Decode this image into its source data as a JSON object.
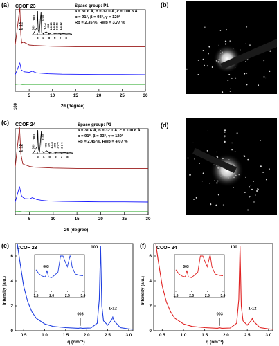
{
  "panels": {
    "a": {
      "label": "(a)",
      "sample": "CCOF 23",
      "space_group": "Space group: P1",
      "cell1": "a = 31.6 Å, b = 32.0 Å, c = 100.8 Å",
      "cell2": "α = 91°, β = 93°, γ = 120°",
      "fit": "Rp = 2.35 %, Rwp = 3.77 %",
      "xlabel": "2θ (degree)",
      "main_peak_labels": [
        "100",
        "1-12"
      ],
      "inset_peak_labels": [
        "100",
        "1-12",
        "003",
        "1-1-4",
        "006",
        "1-1-10",
        "1-1-13",
        "3-3-16",
        "1-1-12"
      ]
    },
    "b": {
      "label": "(b)"
    },
    "c": {
      "label": "(c)",
      "sample": "CCOF 24",
      "space_group": "Space group: P1",
      "cell1": "a = 31.6 Å, b = 32.1 Å, c = 100.8 Å",
      "cell2": "α = 91°, β = 93°, γ = 120°",
      "fit": "Rp = 2.45 %, Rwp = 4.07 %",
      "xlabel": "2θ (degree)",
      "main_peak_labels": [
        "100",
        "1-12"
      ],
      "inset_peak_labels": [
        "100",
        "1-12",
        "003",
        "006",
        "110",
        "1-1-8",
        "200",
        "2-2-4",
        "2-2-6"
      ]
    },
    "d": {
      "label": "(d)"
    },
    "e": {
      "label": "(e)",
      "sample": "CCOF 23",
      "xlabel": "q (nm⁻¹)",
      "ylabel": "Intensity (a.u.)",
      "peak_labels": [
        "100",
        "003",
        "1-12"
      ],
      "inset_label": "003"
    },
    "f": {
      "label": "(f)",
      "sample": "CCOF 24",
      "xlabel": "q (nm⁻¹)",
      "ylabel": "Intensity (a.u.)",
      "peak_labels": [
        "100",
        "003",
        "1-12"
      ],
      "inset_label": "003"
    }
  },
  "colors": {
    "exp": "#9b1b1b",
    "sim": "#1a1aff",
    "diff": "#1aa31a",
    "black": "#000000",
    "red": "#e02020",
    "blue": "#1e3ee0"
  },
  "chart_data": [
    {
      "id": "a-pxrd",
      "type": "line",
      "x_ticks": [
        "5",
        "10",
        "15",
        "20",
        "25",
        "30"
      ],
      "xlim": [
        2,
        30
      ],
      "series": [
        {
          "x": [
            2,
            3.0,
            3.2,
            3.4,
            3.8,
            4.5,
            5,
            6,
            8,
            10,
            15,
            20,
            25,
            30
          ],
          "values": [
            0.05,
            0.95,
            0.3,
            0.1,
            0.12,
            0.08,
            0.05,
            0.04,
            0.03,
            0.02,
            0.01,
            0.01,
            0.01,
            0.01
          ]
        },
        {
          "x": [
            2,
            3.0,
            3.3,
            3.6,
            4.0,
            5.0,
            5.7,
            6.5,
            7.5,
            9,
            12,
            16,
            20,
            25,
            30
          ],
          "values": [
            0,
            0.6,
            0.25,
            0.2,
            0.15,
            0.12,
            0.18,
            0.1,
            0.08,
            0.05,
            0.03,
            0.02,
            0.01,
            0.01,
            0
          ]
        },
        {
          "x": [
            2,
            3.0,
            3.5,
            5,
            10,
            20,
            30
          ],
          "values": [
            0,
            0.05,
            -0.03,
            0.01,
            0,
            0,
            0
          ]
        }
      ],
      "inset": {
        "x_ticks": [
          "3",
          "4",
          "5",
          "6",
          "7",
          "8"
        ],
        "xlim": [
          2,
          9
        ]
      }
    },
    {
      "id": "c-pxrd",
      "type": "line",
      "x_ticks": [
        "5",
        "10",
        "15",
        "20",
        "25",
        "30"
      ],
      "xlim": [
        2,
        30
      ],
      "series": [
        {
          "x": [
            2,
            2.9,
            3.2,
            3.6,
            4.0,
            5,
            6,
            8,
            10,
            15,
            20,
            25,
            30
          ],
          "values": [
            0.05,
            1.0,
            0.35,
            0.12,
            0.1,
            0.06,
            0.04,
            0.03,
            0.02,
            0.01,
            0.01,
            0.01,
            0.01
          ]
        },
        {
          "x": [
            2,
            2.9,
            3.3,
            3.6,
            4.0,
            5.0,
            5.6,
            6.5,
            7.5,
            9,
            12,
            16,
            20,
            25,
            30
          ],
          "values": [
            0,
            0.7,
            0.3,
            0.22,
            0.16,
            0.14,
            0.2,
            0.12,
            0.08,
            0.05,
            0.03,
            0.02,
            0.01,
            0.01,
            0
          ]
        },
        {
          "x": [
            2,
            3.0,
            3.5,
            5,
            10,
            20,
            30
          ],
          "values": [
            0,
            0.04,
            -0.02,
            0.01,
            0,
            0,
            0
          ]
        }
      ],
      "inset": {
        "x_ticks": [
          "3",
          "4",
          "5",
          "6",
          "7",
          "8"
        ],
        "xlim": [
          2,
          9
        ]
      }
    },
    {
      "id": "e-saxs",
      "type": "line",
      "x_ticks": [
        "0.5",
        "1.0",
        "1.5",
        "2.0",
        "2.5",
        "3.0"
      ],
      "xlim": [
        0.3,
        3.1
      ],
      "y_ticks": [
        "0",
        "2",
        "4",
        "6"
      ],
      "ylim": [
        0,
        7
      ],
      "series": [
        {
          "x": [
            0.35,
            0.4,
            0.5,
            0.6,
            0.7,
            0.8,
            1.0,
            1.2,
            1.5,
            1.8,
            1.85,
            1.9,
            2.1,
            2.25,
            2.3,
            2.33,
            2.36,
            2.4,
            2.5,
            2.6,
            2.62,
            2.65,
            2.8,
            3.0,
            3.1
          ],
          "values": [
            7,
            5.8,
            3.6,
            2.3,
            1.5,
            1.0,
            0.55,
            0.35,
            0.25,
            0.2,
            0.23,
            0.2,
            0.22,
            0.6,
            2.5,
            6.8,
            2.0,
            0.8,
            0.45,
            0.9,
            1.1,
            0.8,
            0.25,
            0.15,
            0.12
          ]
        }
      ],
      "inset": {
        "x_ticks": [
          "1.5",
          "2.0",
          "2.5",
          "3.0"
        ],
        "xlim": [
          1.5,
          3.0
        ]
      }
    },
    {
      "id": "f-saxs",
      "type": "line",
      "x_ticks": [
        "0.5",
        "1.0",
        "1.5",
        "2.0",
        "2.5",
        "3.0"
      ],
      "xlim": [
        0.3,
        3.1
      ],
      "y_ticks": [
        "0",
        "2",
        "4",
        "6"
      ],
      "ylim": [
        0,
        7
      ],
      "series": [
        {
          "x": [
            0.35,
            0.4,
            0.5,
            0.6,
            0.7,
            0.8,
            1.0,
            1.2,
            1.5,
            1.8,
            1.85,
            1.9,
            2.1,
            2.25,
            2.3,
            2.33,
            2.36,
            2.4,
            2.5,
            2.6,
            2.62,
            2.65,
            2.8,
            3.0,
            3.1
          ],
          "values": [
            7,
            5.8,
            3.6,
            2.3,
            1.5,
            1.0,
            0.55,
            0.35,
            0.25,
            0.2,
            0.24,
            0.2,
            0.22,
            0.6,
            2.5,
            6.8,
            2.0,
            0.8,
            0.45,
            0.85,
            1.0,
            0.75,
            0.25,
            0.15,
            0.12
          ]
        }
      ],
      "inset": {
        "x_ticks": [
          "1.5",
          "2.0",
          "2.5",
          "3.0"
        ],
        "xlim": [
          1.5,
          3.0
        ]
      }
    }
  ]
}
